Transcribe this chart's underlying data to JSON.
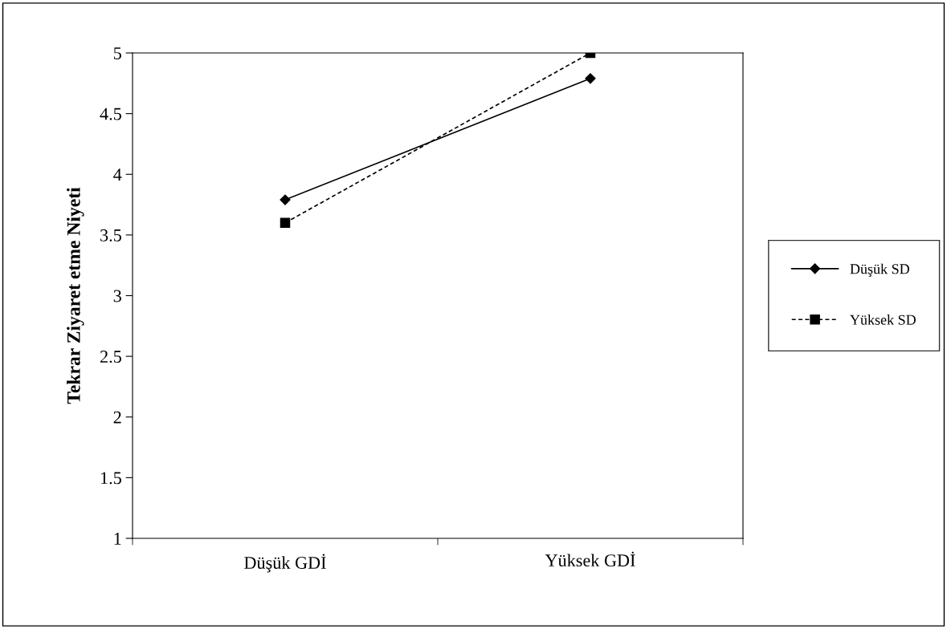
{
  "chart_data": {
    "type": "line",
    "ylabel": "Tekrar Ziyaret etme Niyeti",
    "categories": [
      "Düşük GDİ",
      "Yüksek GDİ"
    ],
    "series": [
      {
        "name": "Düşük SD",
        "color": "#000000",
        "values": [
          3.79,
          4.79
        ],
        "marker": "diamond",
        "line_style": "solid"
      },
      {
        "name": "Yüksek SD",
        "color": "#000000",
        "values": [
          3.6,
          5
        ],
        "marker": "square",
        "line_style": "dashed"
      }
    ],
    "ylim": [
      1,
      5
    ],
    "yticks": [
      1,
      1.5,
      2,
      2.5,
      3,
      3.5,
      4,
      4.5,
      5
    ],
    "grid": false,
    "legend": "right"
  }
}
